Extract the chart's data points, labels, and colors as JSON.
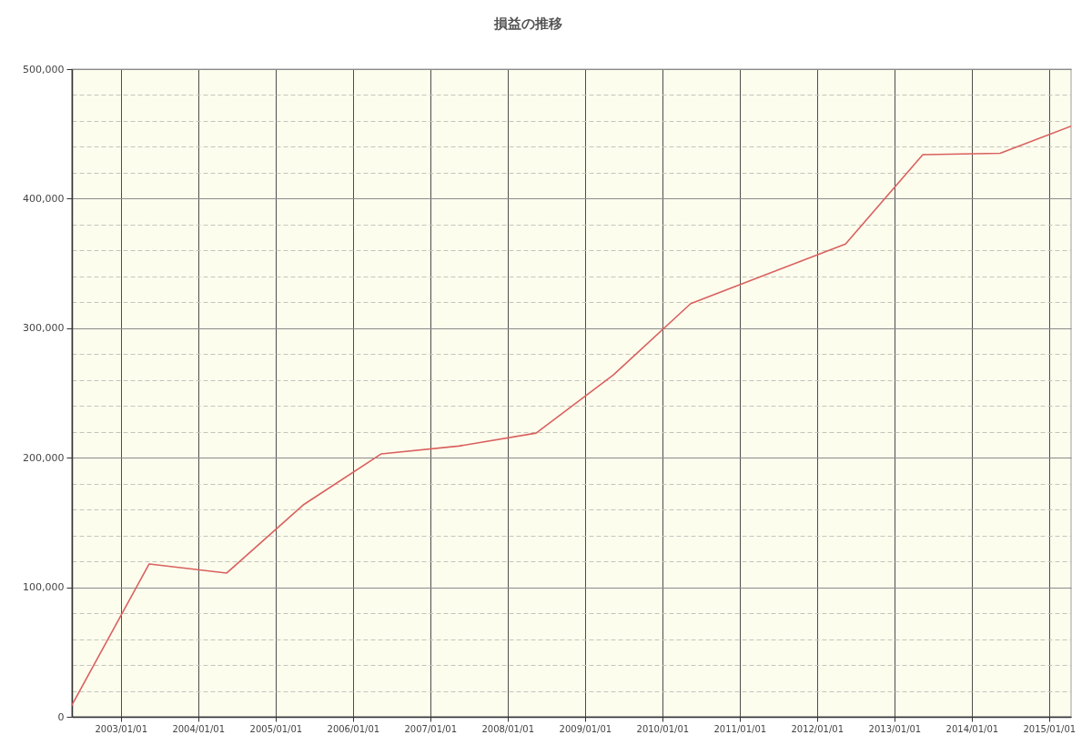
{
  "chart_data": {
    "type": "line",
    "title": "損益の推移",
    "x": [
      "2002-05-15",
      "2003-05-15",
      "2004-05-15",
      "2005-05-15",
      "2006-05-15",
      "2007-05-15",
      "2008-05-15",
      "2009-05-15",
      "2010-05-15",
      "2011-05-15",
      "2012-05-15",
      "2013-05-15",
      "2014-05-15",
      "2015-04-15"
    ],
    "series": [
      {
        "color": "#d9615e",
        "values": [
          9000,
          118000,
          111000,
          164000,
          203000,
          209000,
          219000,
          264000,
          319000,
          342000,
          365000,
          434000,
          435000,
          456000
        ]
      }
    ],
    "xlim": [
      "2002-05-15",
      "2015-04-15"
    ],
    "ylim": [
      0,
      500000
    ],
    "xticks": [
      {
        "value": "2003-01-01",
        "label": "2003/01/01"
      },
      {
        "value": "2004-01-01",
        "label": "2004/01/01"
      },
      {
        "value": "2005-01-01",
        "label": "2005/01/01"
      },
      {
        "value": "2006-01-01",
        "label": "2006/01/01"
      },
      {
        "value": "2007-01-01",
        "label": "2007/01/01"
      },
      {
        "value": "2008-01-01",
        "label": "2008/01/01"
      },
      {
        "value": "2009-01-01",
        "label": "2009/01/01"
      },
      {
        "value": "2010-01-01",
        "label": "2010/01/01"
      },
      {
        "value": "2011-01-01",
        "label": "2011/01/01"
      },
      {
        "value": "2012-01-01",
        "label": "2012/01/01"
      },
      {
        "value": "2013-01-01",
        "label": "2013/01/01"
      },
      {
        "value": "2014-01-01",
        "label": "2014/01/01"
      },
      {
        "value": "2015-01-01",
        "label": "2015/01/01"
      }
    ],
    "yticks": [
      0,
      {
        "value": 20000,
        "label": null
      },
      {
        "value": 40000,
        "label": null
      },
      {
        "value": 60000,
        "label": null
      },
      {
        "value": 80000,
        "label": null
      },
      {
        "value": 100000,
        "label": "100,000"
      },
      {
        "value": 120000,
        "label": null
      },
      {
        "value": 140000,
        "label": null
      },
      {
        "value": 160000,
        "label": null
      },
      {
        "value": 180000,
        "label": null
      },
      {
        "value": 200000,
        "label": "200,000"
      },
      {
        "value": 220000,
        "label": null
      },
      {
        "value": 240000,
        "label": null
      },
      {
        "value": 260000,
        "label": null
      },
      {
        "value": 280000,
        "label": null
      },
      {
        "value": 300000,
        "label": "300,000"
      },
      {
        "value": 320000,
        "label": null
      },
      {
        "value": 340000,
        "label": null
      },
      {
        "value": 360000,
        "label": null
      },
      {
        "value": 380000,
        "label": null
      },
      {
        "value": 400000,
        "label": "400,000"
      },
      {
        "value": 420000,
        "label": null
      },
      {
        "value": 440000,
        "label": null
      },
      {
        "value": 460000,
        "label": null
      },
      {
        "value": 480000,
        "label": null
      },
      {
        "value": 500000,
        "label": "500,000"
      }
    ],
    "grid": true
  }
}
